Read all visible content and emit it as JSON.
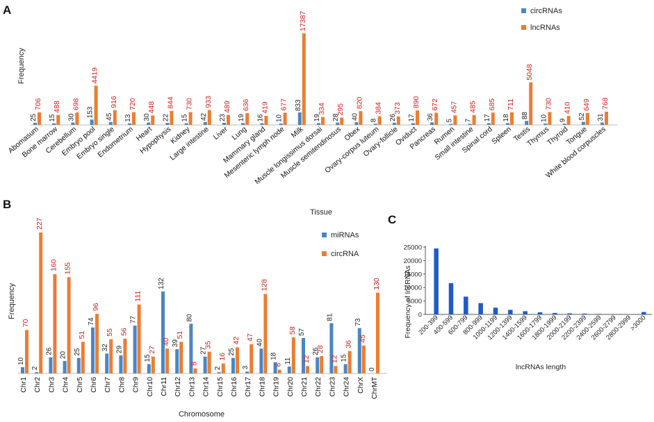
{
  "chart_data": [
    {
      "panel": "A",
      "type": "bar",
      "xlabel": "Tissue",
      "ylabel": "Frequency",
      "categories": [
        "Abomasum",
        "Bone marrow",
        "Cerebellum",
        "Embryo pool",
        "Embryo single",
        "Endometrium",
        "Heart",
        "Hypophysis",
        "Kidney",
        "Large intestine",
        "Liver",
        "Lung",
        "Mammary gland",
        "Mesenteric lymph node",
        "Milk",
        "Muscle longissimus dorsai",
        "Muscle semitendinosus",
        "Obex",
        "Ovary-corpus luteum",
        "Ovary-follicle",
        "Oviduct",
        "Pancreas",
        "Rumen",
        "Small intestine",
        "Spinal cord",
        "Spleen",
        "Testis",
        "Thymus",
        "Thyroid",
        "Tongue",
        "White blood corpuscles"
      ],
      "series": [
        {
          "name": "circRNAs",
          "color": "#4a86c6",
          "values": [
            25,
            15,
            30,
            153,
            45,
            13,
            30,
            22,
            15,
            42,
            23,
            19,
            16,
            10,
            833,
            19,
            28,
            40,
            8,
            26,
            17,
            36,
            5,
            7,
            17,
            18,
            88,
            10,
            9,
            52,
            31
          ]
        },
        {
          "name": "lncRNAs",
          "color": "#ed7d31",
          "values": [
            706,
            488,
            698,
            4419,
            916,
            720,
            448,
            844,
            730,
            933,
            489,
            636,
            419,
            677,
            17387,
            334,
            295,
            820,
            384,
            373,
            890,
            672,
            457,
            485,
            685,
            711,
            5048,
            730,
            410,
            649,
            768
          ]
        }
      ],
      "legend": "top-right"
    },
    {
      "panel": "B",
      "type": "bar",
      "xlabel": "Chromosome",
      "ylabel": "Frequency",
      "categories": [
        "Chr1",
        "Chr2",
        "Chr3",
        "Chr4",
        "Chr5",
        "Chr6",
        "Chr7",
        "Chr8",
        "Chr9",
        "Chr10",
        "Chr11",
        "Chr12",
        "Chr13",
        "Chr14",
        "Chr15",
        "Chr16",
        "Chr17",
        "Chr18",
        "Chr19",
        "Chr20",
        "Chr21",
        "Chr22",
        "Chr23",
        "Chr24",
        "ChrX",
        "ChrMT"
      ],
      "series": [
        {
          "name": "miRNAs",
          "color": "#4a86c6",
          "values": [
            10,
            2,
            26,
            20,
            25,
            74,
            32,
            29,
            77,
            15,
            132,
            39,
            80,
            27,
            2,
            25,
            3,
            40,
            18,
            11,
            57,
            26,
            81,
            15,
            73,
            0
          ]
        },
        {
          "name": "circRNA",
          "color": "#ed7d31",
          "values": [
            70,
            227,
            160,
            155,
            51,
            96,
            55,
            56,
            111,
            27,
            40,
            51,
            8,
            35,
            16,
            42,
            47,
            128,
            6,
            58,
            12,
            28,
            12,
            36,
            45,
            130
          ]
        }
      ],
      "legend": "top-right"
    },
    {
      "panel": "C",
      "type": "bar",
      "xlabel": "lncRNAs length",
      "ylabel": "Frequency of lncRNAs",
      "categories": [
        "200-399",
        "400-599",
        "600-799",
        "800-999",
        "1000-1199",
        "1200-1399",
        "1400-1599",
        "1600-1799",
        "1800-1999",
        "2000-2199",
        "2200-2399",
        "2400-2599",
        "2600-2799",
        "2800-2999",
        ">3000"
      ],
      "values": [
        24500,
        11600,
        6600,
        4200,
        2500,
        1700,
        1200,
        800,
        550,
        400,
        300,
        200,
        150,
        100,
        900
      ],
      "ylim": [
        0,
        25000
      ],
      "yticks": [
        0,
        5000,
        10000,
        15000,
        20000,
        25000
      ],
      "color": "#1f5bc6"
    }
  ]
}
